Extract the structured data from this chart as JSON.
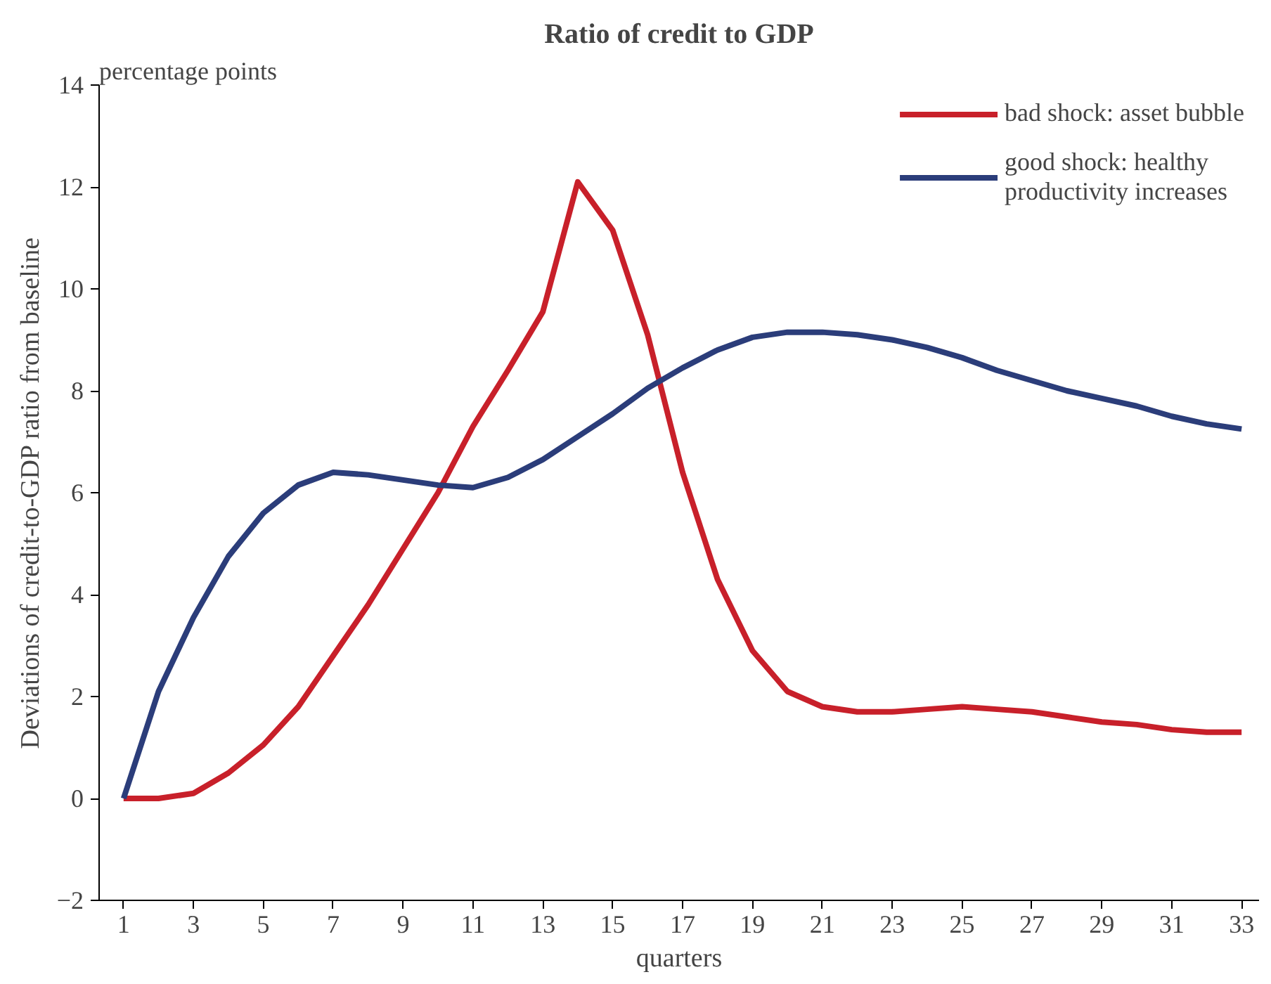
{
  "chart_data": {
    "type": "line",
    "title": "Ratio of credit to GDP",
    "xlabel": "quarters",
    "ylabel": "Deviations of credit-to-GDP ratio from baseline",
    "annotations": [
      "percentage points"
    ],
    "x": [
      1,
      2,
      3,
      4,
      5,
      6,
      7,
      8,
      9,
      10,
      11,
      12,
      13,
      14,
      15,
      16,
      17,
      18,
      19,
      20,
      21,
      22,
      23,
      24,
      25,
      26,
      27,
      28,
      29,
      30,
      31,
      32,
      33
    ],
    "series": [
      {
        "name": "bad shock: asset bubble",
        "color": "#c8202a",
        "values": [
          0,
          0,
          0.1,
          0.5,
          1.05,
          1.8,
          2.8,
          3.8,
          4.9,
          6.0,
          7.3,
          8.4,
          9.55,
          12.1,
          11.15,
          9.1,
          6.4,
          4.3,
          2.9,
          2.1,
          1.8,
          1.7,
          1.7,
          1.75,
          1.8,
          1.75,
          1.7,
          1.6,
          1.5,
          1.45,
          1.35,
          1.3,
          1.3
        ]
      },
      {
        "name": "good shock: healthy\nproductivity increases",
        "color": "#2b3d7a",
        "values": [
          0,
          2.1,
          3.55,
          4.75,
          5.6,
          6.15,
          6.4,
          6.35,
          6.25,
          6.15,
          6.1,
          6.3,
          6.65,
          7.1,
          7.55,
          8.05,
          8.45,
          8.8,
          9.05,
          9.15,
          9.15,
          9.1,
          9.0,
          8.85,
          8.65,
          8.4,
          8.2,
          8.0,
          7.85,
          7.7,
          7.5,
          7.35,
          7.25
        ]
      }
    ],
    "xlim": [
      0.3,
      33.5
    ],
    "xticks": [
      1,
      3,
      5,
      7,
      9,
      11,
      13,
      15,
      17,
      19,
      21,
      23,
      25,
      27,
      29,
      31,
      33
    ],
    "ylim": [
      -2,
      14
    ],
    "yticks": [
      -2,
      0,
      2,
      4,
      6,
      8,
      10,
      12,
      14
    ],
    "grid": false,
    "legend": "top right",
    "line_style": "solid"
  }
}
